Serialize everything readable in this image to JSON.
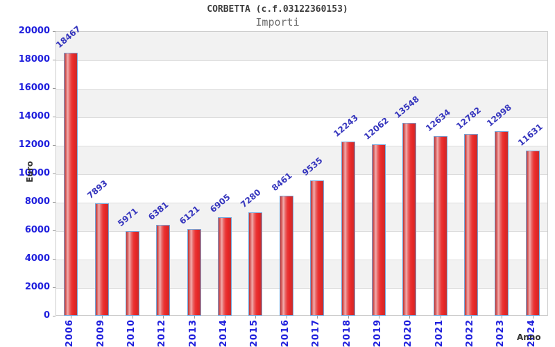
{
  "header": {
    "title": "CORBETTA (c.f.03122360153)",
    "subtitle": "Importi"
  },
  "chart_data": {
    "type": "bar",
    "title": "CORBETTA (c.f.03122360153)",
    "subtitle": "Importi",
    "xlabel": "Anno",
    "ylabel": "Euro",
    "categories": [
      "2006",
      "2009",
      "2010",
      "2012",
      "2013",
      "2014",
      "2015",
      "2016",
      "2017",
      "2018",
      "2019",
      "2020",
      "2021",
      "2022",
      "2023",
      "2024"
    ],
    "values": [
      18467,
      7893,
      5971,
      6381,
      6121,
      6905,
      7280,
      8461,
      9535,
      12243,
      12062,
      13548,
      12634,
      12782,
      12998,
      11631
    ],
    "ylim": [
      0,
      20000
    ],
    "ytick_step": 2000,
    "grid": "horizontal-bands",
    "legend": "none",
    "bar_value_labels_rotated_deg": -40,
    "x_labels_rotated_deg": -90
  },
  "colors": {
    "page_bg": "#ffffff",
    "title_color": "#3c3c3c",
    "subtitle_color": "#6f6f6f",
    "band_gray": "#f2f2f2",
    "band_white": "#ffffff",
    "plot_border": "#cccccc",
    "grid_line": "#dcdcdc",
    "tick_label_blue": "#2020dd",
    "value_label_blue": "#3535bd",
    "axis_title_color": "#333333",
    "tick_mark": "#999999",
    "bar_red": "#e52525",
    "bar_highlight": "#f2adad",
    "bar_edge": "#bc3534",
    "bar_border": "#74a7dc"
  }
}
